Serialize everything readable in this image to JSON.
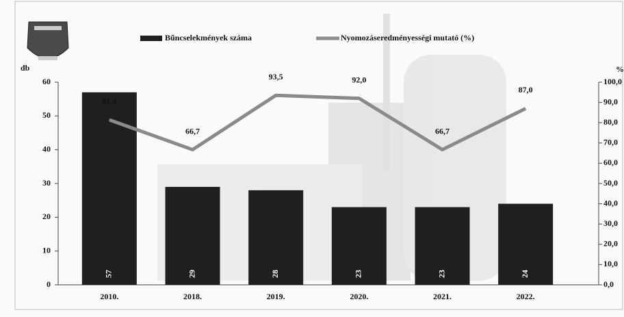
{
  "chart_data": {
    "type": "combo",
    "categories": [
      "2010.",
      "2018.",
      "2019.",
      "2020.",
      "2021.",
      "2022."
    ],
    "series": [
      {
        "name": "Bűncselekmények száma",
        "type": "bar",
        "color": "#1f1f1f",
        "values": [
          57,
          29,
          28,
          23,
          23,
          24
        ]
      },
      {
        "name": "Nyomozáseredményességi mutató (%)",
        "type": "line",
        "color": "#8a8a8a",
        "axis": "y2",
        "values": [
          81.4,
          66.7,
          93.5,
          92.0,
          66.7,
          87.0
        ],
        "value_labels": [
          "81,4",
          "66,7",
          "93,5",
          "92,0",
          "66,7",
          "87,0"
        ]
      }
    ],
    "y_label": "db",
    "y2_label": "%",
    "ylim": [
      0,
      60
    ],
    "yticks": [
      0,
      10,
      20,
      30,
      40,
      50,
      60
    ],
    "y2lim": [
      0,
      100
    ],
    "y2ticks": [
      {
        "value": 0,
        "label": "0,0"
      },
      {
        "value": 10,
        "label": "10,0"
      },
      {
        "value": 20,
        "label": "20,0"
      },
      {
        "value": 30,
        "label": "30,0"
      },
      {
        "value": 40,
        "label": "40,0"
      },
      {
        "value": 50,
        "label": "50,0"
      },
      {
        "value": 60,
        "label": "60,0"
      },
      {
        "value": 70,
        "label": "70,0"
      },
      {
        "value": 80,
        "label": "80,0"
      },
      {
        "value": 90,
        "label": "90,0"
      },
      {
        "value": 100,
        "label": "100,0"
      }
    ],
    "legend": "top"
  }
}
